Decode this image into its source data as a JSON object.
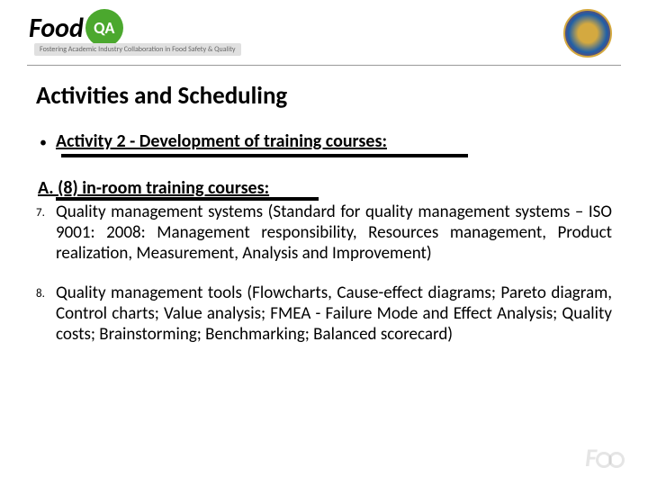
{
  "header": {
    "logo_text": "Food",
    "qa_badge": "QA",
    "tagline": "Fostering Academic Industry Collaboration in Food Safety & Quality"
  },
  "title": "Activities and Scheduling",
  "activity": {
    "bullet": "•",
    "label": "Activity 2 - Development of training courses:"
  },
  "subheading": "A. (8) in-room training courses:",
  "items": [
    {
      "num": "7.",
      "text": "Quality management systems (Standard for quality management systems – ISO 9001: 2008: Management responsibility, Resources management, Product realization, Measurement, Analysis and Improvement)"
    },
    {
      "num": "8.",
      "text": "Quality management tools (Flowcharts, Cause-effect diagrams; Pareto diagram, Control charts; Value analysis; FMEA - Failure Mode and Effect Analysis; Quality costs; Brainstorming; Benchmarking; Balanced scorecard)"
    }
  ],
  "watermark": "F"
}
